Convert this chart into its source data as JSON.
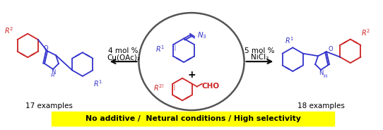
{
  "bg_color": "#ffffff",
  "yellow_bar_color": "#ffff00",
  "yellow_bar_text": "No additive /  Netural conditions / High selectivity",
  "yellow_bar_text_color": "#000000",
  "left_arrow_label_line1": "4 mol %",
  "left_arrow_label_line2": "Cu(OAc)₂",
  "right_arrow_label_line1": "5 mol %",
  "right_arrow_label_line2": "NiCl₂",
  "left_examples": "17 examples",
  "right_examples": "18 examples",
  "plus_sign": "+",
  "blue_color": "#3333cc",
  "red_color": "#cc2222",
  "black_color": "#000000",
  "arrow_color": "#111111",
  "ellipse_color": "#555555",
  "figsize": [
    5.42,
    1.84
  ],
  "dpi": 100
}
